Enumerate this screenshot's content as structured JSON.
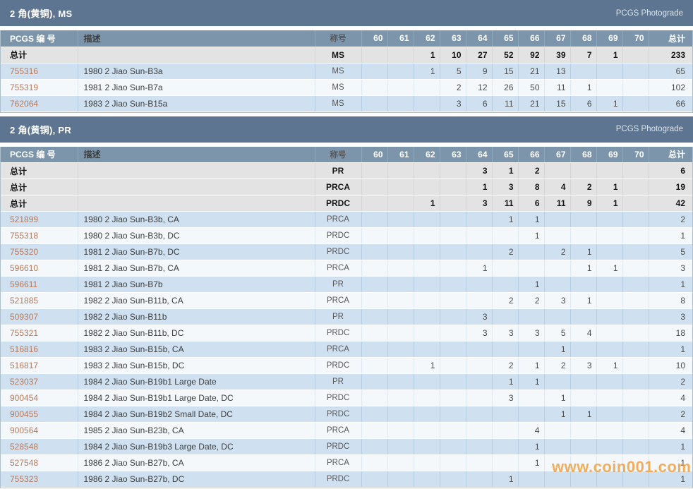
{
  "labels": {
    "photograde": "PCGS Photograde",
    "totals_label": "总计",
    "watermark": "www.coin001.com"
  },
  "columns": {
    "id": "PCGS 编 号",
    "desc": "描述",
    "designation": "称号",
    "grades": [
      "60",
      "61",
      "62",
      "63",
      "64",
      "65",
      "66",
      "67",
      "68",
      "69",
      "70"
    ],
    "total": "总计"
  },
  "colors": {
    "section_bar": "#5d7590",
    "table_header": "#7c95aa",
    "totals_row": "#e3e3e3",
    "row_blue": "#cfe1f1",
    "row_white": "#f4f8fb",
    "id_link": "#b5795c",
    "watermark_orange": "#f09c35"
  },
  "sections": [
    {
      "title": "2 角(黄铜), MS",
      "totals": [
        {
          "designation": "MS",
          "grades": [
            "",
            "",
            "1",
            "10",
            "27",
            "52",
            "92",
            "39",
            "7",
            "1",
            ""
          ],
          "total": "233"
        }
      ],
      "rows": [
        {
          "id": "755316",
          "desc": "1980 2 Jiao Sun-B3a",
          "designation": "MS",
          "grades": [
            "",
            "",
            "1",
            "5",
            "9",
            "15",
            "21",
            "13",
            "",
            "",
            ""
          ],
          "total": "65"
        },
        {
          "id": "755319",
          "desc": "1981 2 Jiao Sun-B7a",
          "designation": "MS",
          "grades": [
            "",
            "",
            "",
            "2",
            "12",
            "26",
            "50",
            "11",
            "1",
            "",
            ""
          ],
          "total": "102"
        },
        {
          "id": "762064",
          "desc": "1983 2 Jiao Sun-B15a",
          "designation": "MS",
          "grades": [
            "",
            "",
            "",
            "3",
            "6",
            "11",
            "21",
            "15",
            "6",
            "1",
            ""
          ],
          "total": "66"
        }
      ]
    },
    {
      "title": "2 角(黄铜), PR",
      "totals": [
        {
          "designation": "PR",
          "grades": [
            "",
            "",
            "",
            "",
            "3",
            "1",
            "2",
            "",
            "",
            "",
            ""
          ],
          "total": "6"
        },
        {
          "designation": "PRCA",
          "grades": [
            "",
            "",
            "",
            "",
            "1",
            "3",
            "8",
            "4",
            "2",
            "1",
            ""
          ],
          "total": "19"
        },
        {
          "designation": "PRDC",
          "grades": [
            "",
            "",
            "1",
            "",
            "3",
            "11",
            "6",
            "11",
            "9",
            "1",
            ""
          ],
          "total": "42"
        }
      ],
      "rows": [
        {
          "id": "521899",
          "desc": "1980 2 Jiao Sun-B3b, CA",
          "designation": "PRCA",
          "grades": [
            "",
            "",
            "",
            "",
            "",
            "1",
            "1",
            "",
            "",
            "",
            ""
          ],
          "total": "2"
        },
        {
          "id": "755318",
          "desc": "1980 2 Jiao Sun-B3b, DC",
          "designation": "PRDC",
          "grades": [
            "",
            "",
            "",
            "",
            "",
            "",
            "1",
            "",
            "",
            "",
            ""
          ],
          "total": "1"
        },
        {
          "id": "755320",
          "desc": "1981 2 Jiao Sun-B7b, DC",
          "designation": "PRDC",
          "grades": [
            "",
            "",
            "",
            "",
            "",
            "2",
            "",
            "2",
            "1",
            "",
            ""
          ],
          "total": "5"
        },
        {
          "id": "596610",
          "desc": "1981 2 Jiao Sun-B7b, CA",
          "designation": "PRCA",
          "grades": [
            "",
            "",
            "",
            "",
            "1",
            "",
            "",
            "",
            "1",
            "1",
            ""
          ],
          "total": "3"
        },
        {
          "id": "596611",
          "desc": "1981 2 Jiao Sun-B7b",
          "designation": "PR",
          "grades": [
            "",
            "",
            "",
            "",
            "",
            "",
            "1",
            "",
            "",
            "",
            ""
          ],
          "total": "1"
        },
        {
          "id": "521885",
          "desc": "1982 2 Jiao Sun-B11b, CA",
          "designation": "PRCA",
          "grades": [
            "",
            "",
            "",
            "",
            "",
            "2",
            "2",
            "3",
            "1",
            "",
            ""
          ],
          "total": "8"
        },
        {
          "id": "509307",
          "desc": "1982 2 Jiao Sun-B11b",
          "designation": "PR",
          "grades": [
            "",
            "",
            "",
            "",
            "3",
            "",
            "",
            "",
            "",
            "",
            ""
          ],
          "total": "3"
        },
        {
          "id": "755321",
          "desc": "1982 2 Jiao Sun-B11b, DC",
          "designation": "PRDC",
          "grades": [
            "",
            "",
            "",
            "",
            "3",
            "3",
            "3",
            "5",
            "4",
            "",
            ""
          ],
          "total": "18"
        },
        {
          "id": "516816",
          "desc": "1983 2 Jiao Sun-B15b, CA",
          "designation": "PRCA",
          "grades": [
            "",
            "",
            "",
            "",
            "",
            "",
            "",
            "1",
            "",
            "",
            ""
          ],
          "total": "1"
        },
        {
          "id": "516817",
          "desc": "1983 2 Jiao Sun-B15b, DC",
          "designation": "PRDC",
          "grades": [
            "",
            "",
            "1",
            "",
            "",
            "2",
            "1",
            "2",
            "3",
            "1",
            ""
          ],
          "total": "10"
        },
        {
          "id": "523037",
          "desc": "1984 2 Jiao Sun-B19b1 Large Date",
          "designation": "PR",
          "grades": [
            "",
            "",
            "",
            "",
            "",
            "1",
            "1",
            "",
            "",
            "",
            ""
          ],
          "total": "2"
        },
        {
          "id": "900454",
          "desc": "1984 2 Jiao Sun-B19b1 Large Date, DC",
          "designation": "PRDC",
          "grades": [
            "",
            "",
            "",
            "",
            "",
            "3",
            "",
            "1",
            "",
            "",
            ""
          ],
          "total": "4"
        },
        {
          "id": "900455",
          "desc": "1984 2 Jiao Sun-B19b2 Small Date, DC",
          "designation": "PRDC",
          "grades": [
            "",
            "",
            "",
            "",
            "",
            "",
            "",
            "1",
            "1",
            "",
            ""
          ],
          "total": "2"
        },
        {
          "id": "900564",
          "desc": "1985 2 Jiao Sun-B23b, CA",
          "designation": "PRCA",
          "grades": [
            "",
            "",
            "",
            "",
            "",
            "",
            "4",
            "",
            "",
            "",
            ""
          ],
          "total": "4"
        },
        {
          "id": "528548",
          "desc": "1984 2 Jiao Sun-B19b3 Large Date, DC",
          "designation": "PRDC",
          "grades": [
            "",
            "",
            "",
            "",
            "",
            "",
            "1",
            "",
            "",
            "",
            ""
          ],
          "total": "1"
        },
        {
          "id": "527548",
          "desc": "1986 2 Jiao Sun-B27b, CA",
          "designation": "PRCA",
          "grades": [
            "",
            "",
            "",
            "",
            "",
            "",
            "1",
            "",
            "",
            "",
            ""
          ],
          "total": "1"
        },
        {
          "id": "755323",
          "desc": "1986 2 Jiao Sun-B27b, DC",
          "designation": "PRDC",
          "grades": [
            "",
            "",
            "",
            "",
            "",
            "1",
            "",
            "",
            "",
            "",
            ""
          ],
          "total": "1"
        }
      ]
    }
  ]
}
